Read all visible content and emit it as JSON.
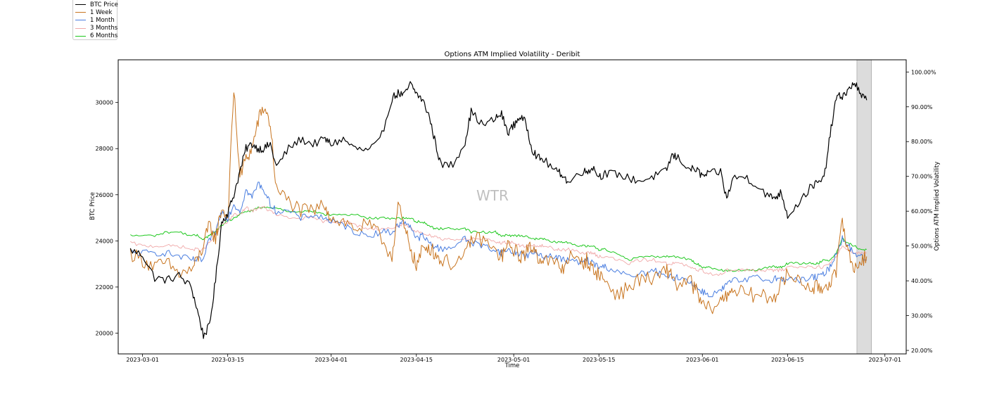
{
  "chart_data": {
    "type": "line",
    "title": "Options ATM Implied Volatility - Deribit",
    "xlabel": "Time",
    "ylabel": "BTC Price",
    "y2label": "Options ATM Implied Volatility",
    "watermark": "WTR",
    "x_ticks": [
      "2023-03-01",
      "2023-03-15",
      "2023-04-01",
      "2023-04-15",
      "2023-05-01",
      "2023-05-15",
      "2023-06-01",
      "2023-06-15",
      "2023-07-01"
    ],
    "x_tick_days": [
      0,
      14,
      31,
      45,
      61,
      75,
      92,
      106,
      122
    ],
    "xlim_days": [
      -4,
      125.5
    ],
    "x_origin_date": "2023-03-01",
    "y_ticks": [
      20000,
      22000,
      24000,
      26000,
      28000,
      30000
    ],
    "y_tick_labels": [
      "20000",
      "22000",
      "24000",
      "26000",
      "28000",
      "30000"
    ],
    "ylim": [
      19100,
      31850
    ],
    "y2_ticks": [
      20,
      30,
      40,
      50,
      60,
      70,
      80,
      90,
      100
    ],
    "y2_tick_labels": [
      "20.00%",
      "30.00%",
      "40.00%",
      "50.00%",
      "60.00%",
      "70.00%",
      "80.00%",
      "90.00%",
      "100.00%"
    ],
    "y2lim": [
      19,
      103.5
    ],
    "shaded_region_days": [
      117.4,
      119.8
    ],
    "shaded_region_color": "#dcdcdc",
    "x_days": [
      -2,
      0,
      2,
      4,
      6,
      8,
      9,
      10,
      11,
      12,
      13,
      14,
      15,
      16,
      17,
      18,
      19,
      20,
      21,
      22,
      24,
      26,
      28,
      30,
      31,
      33,
      35,
      37,
      39,
      41,
      42,
      43,
      44,
      45,
      46,
      47,
      48,
      49,
      51,
      53,
      54,
      56,
      58,
      59,
      60,
      61,
      62,
      63,
      64,
      65,
      66,
      68,
      69,
      70,
      72,
      73,
      74,
      75,
      76,
      78,
      80,
      82,
      84,
      86,
      87,
      88,
      90,
      91,
      92,
      93,
      95,
      96,
      97,
      99,
      101,
      103,
      104,
      105,
      106,
      108,
      110,
      111,
      112,
      113,
      114,
      115,
      116,
      117,
      118,
      119
    ],
    "series": [
      {
        "name": "BTC Price",
        "color": "#000000",
        "axis": "left",
        "values": [
          23600,
          23400,
          22400,
          22300,
          22500,
          22000,
          21000,
          19900,
          20300,
          22300,
          24800,
          25200,
          26000,
          27000,
          28000,
          28200,
          28000,
          28000,
          28200,
          27200,
          28000,
          28400,
          28200,
          28400,
          28200,
          28400,
          28000,
          27900,
          28300,
          30200,
          30400,
          30300,
          30800,
          30400,
          30100,
          29500,
          28400,
          27300,
          27300,
          28300,
          29600,
          29000,
          29300,
          29500,
          28700,
          29000,
          29400,
          29100,
          28000,
          27600,
          27500,
          27000,
          26900,
          26500,
          27000,
          27000,
          27200,
          26800,
          26900,
          26900,
          26700,
          26600,
          26800,
          27000,
          27700,
          27600,
          27100,
          27100,
          26800,
          26900,
          27000,
          25800,
          26700,
          26800,
          26400,
          25900,
          25900,
          26100,
          25100,
          25700,
          26400,
          26500,
          26700,
          28600,
          30200,
          30300,
          30500,
          30900,
          30300,
          30100
        ]
      },
      {
        "name": "1 Week",
        "color": "#c87520",
        "axis": "right",
        "values": [
          48,
          46,
          44,
          45,
          42,
          43,
          46,
          50,
          56,
          52,
          61,
          58,
          95,
          70,
          75,
          78,
          86,
          90,
          85,
          66,
          63,
          60,
          60,
          62,
          58,
          57,
          55,
          56,
          53,
          47,
          62,
          55,
          50,
          44,
          49,
          50,
          48,
          46,
          45,
          47,
          52,
          52,
          48,
          47,
          50,
          49,
          47,
          48,
          50,
          47,
          46,
          45,
          43,
          47,
          45,
          46,
          43,
          42,
          40,
          36,
          38,
          41,
          40,
          43,
          42,
          38,
          40,
          37,
          33,
          32,
          34,
          36,
          38,
          36,
          36,
          35,
          36,
          39,
          42,
          40,
          38,
          38,
          38,
          40,
          42,
          58,
          48,
          43,
          46,
          47
        ]
      },
      {
        "name": "1 Month",
        "color": "#4a7ee0",
        "axis": "right",
        "values": [
          48,
          48,
          48,
          48,
          47,
          46,
          46,
          46,
          52,
          54,
          60,
          58,
          62,
          60,
          66,
          64,
          68,
          66,
          62,
          60,
          60,
          58,
          59,
          58,
          57,
          56,
          54,
          53,
          54,
          54,
          56,
          57,
          56,
          52,
          53,
          51,
          50,
          49,
          50,
          52,
          51,
          50,
          49,
          48,
          49,
          48,
          48,
          47,
          48,
          48,
          47,
          47,
          46,
          46,
          45,
          46,
          45,
          44,
          44,
          43,
          41,
          42,
          43,
          41,
          41,
          41,
          40,
          38,
          37,
          36,
          37,
          39,
          40,
          40,
          41,
          40,
          41,
          40,
          41,
          40,
          41,
          41,
          42,
          44,
          48,
          52,
          50,
          48,
          47,
          46
        ]
      },
      {
        "name": "3 Months",
        "color": "#f0a8a8",
        "axis": "right",
        "values": [
          51,
          50,
          50,
          50,
          50,
          49,
          49,
          49,
          51,
          53,
          56,
          57,
          59,
          59,
          61,
          60,
          61,
          61,
          60,
          59,
          58,
          58,
          58,
          57,
          57,
          57,
          56,
          55,
          55,
          55,
          56,
          56,
          55,
          54,
          54,
          53,
          53,
          52,
          52,
          52,
          52,
          52,
          51,
          51,
          51,
          51,
          50,
          50,
          50,
          50,
          50,
          49,
          49,
          49,
          48,
          48,
          48,
          47,
          47,
          46,
          45,
          46,
          46,
          45,
          45,
          45,
          44,
          43,
          43,
          42,
          42,
          43,
          43,
          43,
          43,
          43,
          43,
          43,
          44,
          44,
          44,
          44,
          44,
          45,
          47,
          50,
          49,
          48,
          48,
          48
        ]
      },
      {
        "name": "6 Months",
        "color": "#1ec81e",
        "axis": "right",
        "values": [
          53,
          53,
          53,
          54,
          54,
          53,
          53,
          52,
          53,
          54,
          56,
          57,
          58,
          59,
          60,
          60,
          61,
          61,
          61,
          61,
          60,
          60,
          60,
          59,
          59,
          59,
          59,
          58,
          58,
          58,
          58,
          58,
          58,
          57,
          57,
          56,
          55,
          55,
          55,
          55,
          54,
          54,
          54,
          53,
          53,
          53,
          53,
          53,
          52,
          52,
          52,
          51,
          51,
          51,
          50,
          50,
          50,
          49,
          49,
          48,
          46,
          47,
          47,
          47,
          47,
          47,
          46,
          45,
          44,
          44,
          43,
          43,
          43,
          43,
          43,
          44,
          44,
          44,
          45,
          45,
          45,
          45,
          46,
          46,
          48,
          52,
          51,
          50,
          49,
          49
        ]
      }
    ],
    "legend_placement": "top-left, outside plot"
  }
}
